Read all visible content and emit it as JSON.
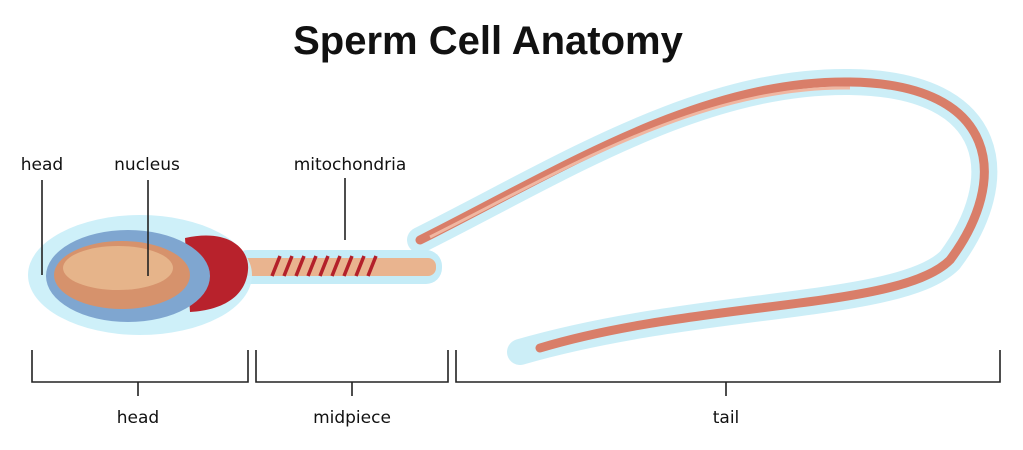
{
  "title": "Sperm Cell Anatomy",
  "callouts": [
    {
      "label": "head"
    },
    {
      "label": "nucleus"
    },
    {
      "label": "mitochondria"
    }
  ],
  "sections": [
    {
      "label": "head"
    },
    {
      "label": "midpiece"
    },
    {
      "label": "tail"
    }
  ]
}
